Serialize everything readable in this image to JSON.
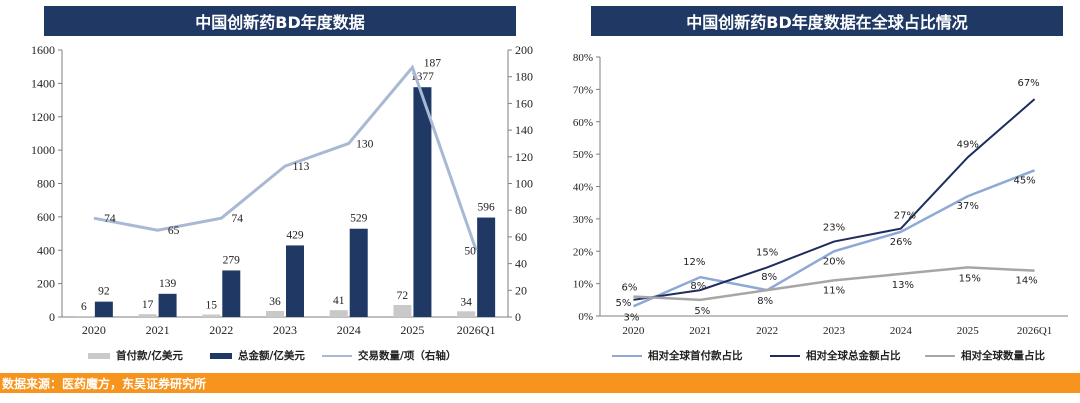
{
  "left_title": "中国创新药BD年度数据",
  "right_title": "中国创新药BD年度数据在全球占比情况",
  "source": "数据来源：医药魔方，东吴证券研究所",
  "colors": {
    "banner": "#1f3864",
    "upfront": "#c9c9c9",
    "total": "#1f3864",
    "deals": "#a9b8d3",
    "rel_upfront": "#8fa9d6",
    "rel_total": "#1f2d5e",
    "rel_count": "#a6a6a6",
    "source_bar": "#f7941d"
  },
  "chart_data": [
    {
      "type": "bar",
      "categories": [
        "2020",
        "2021",
        "2022",
        "2023",
        "2024",
        "2025",
        "2026Q1"
      ],
      "series": [
        {
          "name": "首付款/亿美元",
          "kind": "bar",
          "axis": "left",
          "values": [
            6,
            17,
            15,
            36,
            41,
            72,
            34
          ]
        },
        {
          "name": "总金额/亿美元",
          "kind": "bar",
          "axis": "left",
          "values": [
            92,
            139,
            279,
            429,
            529,
            1377,
            596
          ]
        },
        {
          "name": "交易数量/项（右轴）",
          "kind": "line",
          "axis": "right",
          "values": [
            74,
            65,
            74,
            113,
            130,
            187,
            50
          ]
        }
      ],
      "ylim": [
        0,
        1600
      ],
      "yticks": [
        0,
        200,
        400,
        600,
        800,
        1000,
        1200,
        1400,
        1600
      ],
      "y2lim": [
        0,
        200
      ],
      "y2ticks": [
        0,
        20,
        40,
        60,
        80,
        100,
        120,
        140,
        160,
        180,
        200
      ],
      "legend": "bottom"
    },
    {
      "type": "line",
      "categories": [
        "2020",
        "2021",
        "2022",
        "2023",
        "2024",
        "2025",
        "2026Q1"
      ],
      "series": [
        {
          "name": "相对全球首付款占比",
          "values": [
            3,
            12,
            8,
            20,
            26,
            37,
            45
          ]
        },
        {
          "name": "相对全球总金额占比",
          "values": [
            5,
            8,
            15,
            23,
            27,
            49,
            67
          ]
        },
        {
          "name": "相对全球数量占比",
          "values": [
            6,
            5,
            8,
            11,
            13,
            15,
            14
          ]
        }
      ],
      "ylim": [
        0,
        80
      ],
      "yticks": [
        "0%",
        "10%",
        "20%",
        "30%",
        "40%",
        "50%",
        "60%",
        "70%",
        "80%"
      ],
      "legend": "bottom"
    }
  ]
}
